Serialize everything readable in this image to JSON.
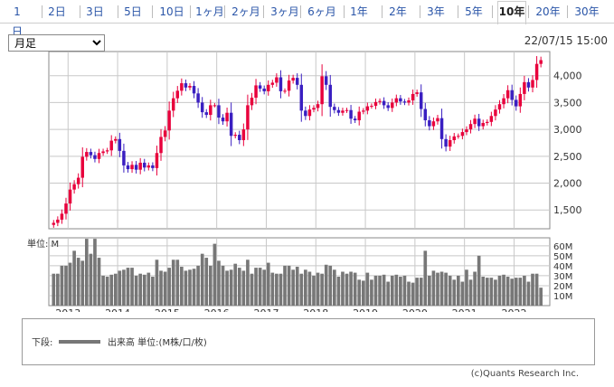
{
  "tabs": [
    {
      "label": "1日",
      "active": false
    },
    {
      "label": "2日",
      "active": false
    },
    {
      "label": "3日",
      "active": false
    },
    {
      "label": "5日",
      "active": false
    },
    {
      "label": "10日",
      "active": false
    },
    {
      "label": "1ヶ月",
      "active": false
    },
    {
      "label": "2ヶ月",
      "active": false
    },
    {
      "label": "3ヶ月",
      "active": false
    },
    {
      "label": "6ヶ月",
      "active": false
    },
    {
      "label": "1年",
      "active": false
    },
    {
      "label": "2年",
      "active": false
    },
    {
      "label": "3年",
      "active": false
    },
    {
      "label": "5年",
      "active": false
    },
    {
      "label": "10年",
      "active": true
    },
    {
      "label": "20年",
      "active": false
    },
    {
      "label": "30年",
      "active": false
    }
  ],
  "period_select": {
    "value": "月足",
    "options": [
      "月足"
    ]
  },
  "timestamp": "22/07/15 15:00",
  "volume_unit_label": "単位: M",
  "legend": {
    "prefix": "下段:",
    "label": "出来高 単位:(M株/口/枚)"
  },
  "credit": "(c)Quants Research Inc.",
  "colors": {
    "up": "#e8003c",
    "down": "#3a1fc1",
    "volume": "#777777",
    "grid": "#c8c8c8",
    "tab_text": "#2a55a8"
  },
  "chart_data": [
    {
      "type": "candlestick",
      "title": "",
      "x_tick_labels": [
        "2013",
        "2014",
        "2015",
        "2016",
        "2017",
        "2018",
        "2019",
        "2020",
        "2021",
        "2022"
      ],
      "y_tick_labels": [
        "1,500",
        "2,000",
        "2,500",
        "3,000",
        "3,500",
        "4,000"
      ],
      "ylim": [
        1150,
        4450
      ],
      "start_month": "2012-09",
      "months": 119,
      "close": [
        1260,
        1320,
        1430,
        1620,
        1880,
        1980,
        2100,
        2490,
        2580,
        2520,
        2450,
        2560,
        2590,
        2610,
        2790,
        2820,
        2600,
        2330,
        2260,
        2340,
        2250,
        2380,
        2290,
        2330,
        2280,
        2560,
        2860,
        2980,
        3350,
        3580,
        3720,
        3860,
        3780,
        3810,
        3670,
        3500,
        3320,
        3270,
        3450,
        3450,
        3220,
        3150,
        3310,
        2880,
        2900,
        2800,
        3000,
        3450,
        3590,
        3820,
        3760,
        3710,
        3830,
        3870,
        3970,
        3710,
        3720,
        3910,
        3960,
        3830,
        3350,
        3250,
        3370,
        3400,
        3470,
        3990,
        3830,
        3420,
        3360,
        3310,
        3350,
        3360,
        3200,
        3170,
        3330,
        3350,
        3430,
        3440,
        3510,
        3530,
        3450,
        3400,
        3500,
        3580,
        3520,
        3500,
        3540,
        3660,
        3690,
        3380,
        3170,
        3060,
        3150,
        3210,
        2820,
        2680,
        2800,
        2870,
        2880,
        2950,
        3000,
        3100,
        3200,
        3060,
        3120,
        3140,
        3250,
        3370,
        3470,
        3580,
        3730,
        3550,
        3430,
        3660,
        3880,
        3780,
        3920,
        4220,
        4290
      ],
      "ytick_values": [
        1500,
        2000,
        2500,
        3000,
        3500,
        4000
      ]
    },
    {
      "type": "bar",
      "title": "",
      "ylabel": "単位: M",
      "y_tick_labels": [
        "10M",
        "20M",
        "30M",
        "40M",
        "50M",
        "60M"
      ],
      "ylim": [
        0,
        68
      ],
      "values": [
        32,
        32,
        40,
        40,
        43,
        55,
        48,
        45,
        67,
        52,
        67,
        48,
        30,
        29,
        31,
        32,
        35,
        36,
        38,
        38,
        30,
        32,
        31,
        33,
        29,
        46,
        35,
        34,
        38,
        46,
        46,
        39,
        35,
        36,
        37,
        40,
        52,
        48,
        40,
        62,
        45,
        40,
        35,
        36,
        42,
        38,
        35,
        46,
        32,
        38,
        38,
        36,
        43,
        33,
        32,
        32,
        40,
        40,
        36,
        39,
        32,
        36,
        34,
        30,
        33,
        32,
        41,
        40,
        36,
        29,
        34,
        32,
        34,
        33,
        26,
        25,
        33,
        26,
        30,
        30,
        31,
        24,
        30,
        31,
        29,
        30,
        24,
        23,
        28,
        28,
        55,
        30,
        35,
        33,
        34,
        33,
        30,
        26,
        30,
        24,
        36,
        26,
        34,
        50,
        29,
        28,
        28,
        26,
        30,
        31,
        29,
        27,
        28,
        28,
        30,
        24,
        32,
        32,
        18
      ],
      "ytick_values": [
        10,
        20,
        30,
        40,
        50,
        60
      ]
    }
  ]
}
